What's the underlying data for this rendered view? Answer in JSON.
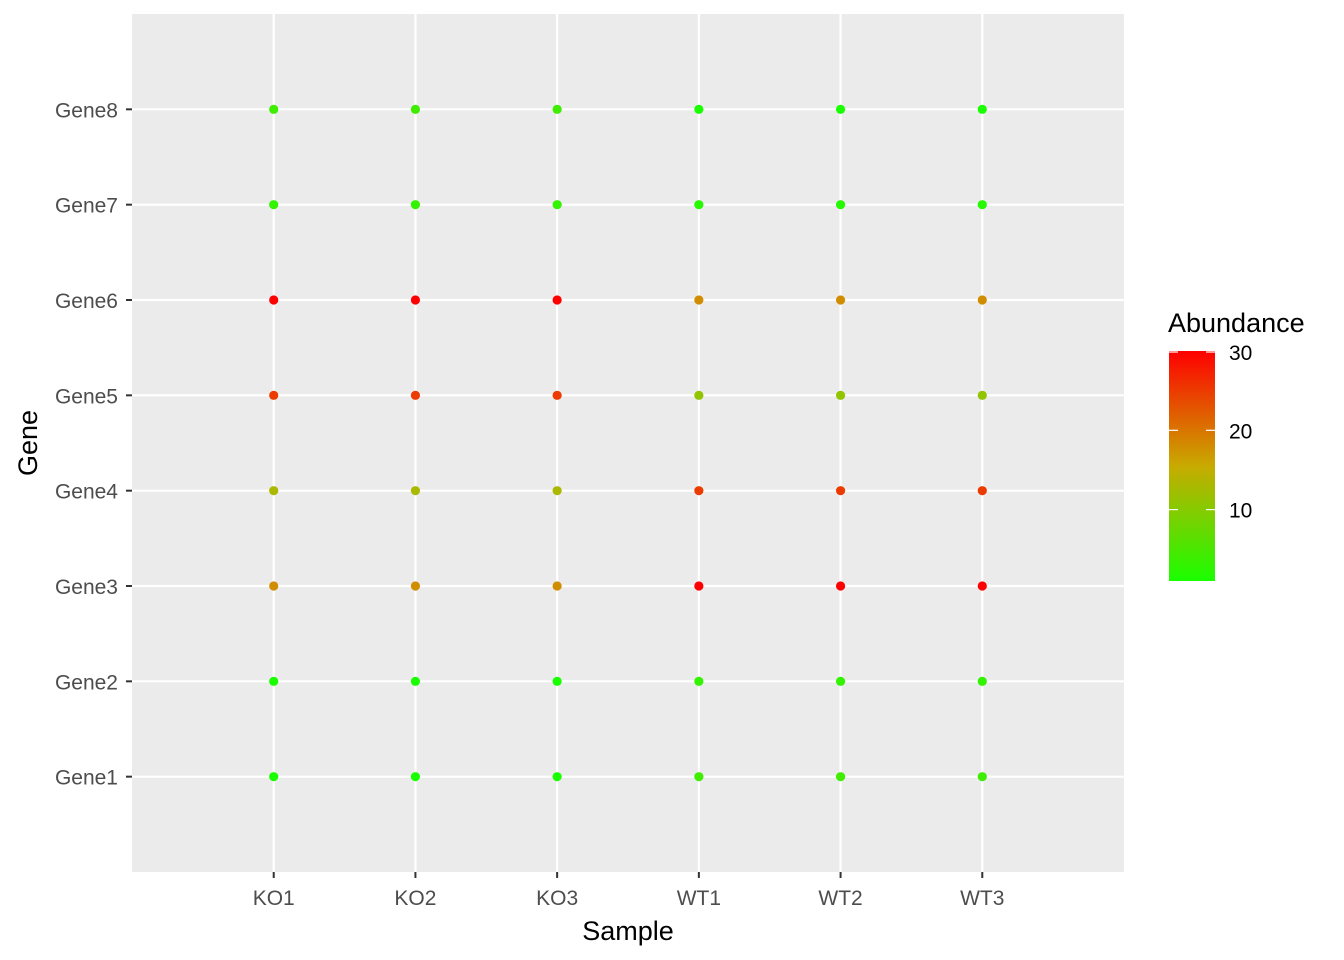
{
  "chart_data": {
    "type": "scatter",
    "xlabel": "Sample",
    "ylabel": "Gene",
    "x_categories": [
      "KO1",
      "KO2",
      "KO3",
      "WT1",
      "WT2",
      "WT3"
    ],
    "y_categories": [
      "Gene1",
      "Gene2",
      "Gene3",
      "Gene4",
      "Gene5",
      "Gene6",
      "Gene7",
      "Gene8"
    ],
    "color_variable": "Abundance",
    "color_scale": {
      "low_color": "#1aff00",
      "mid_color": "#c8aa00",
      "high_color": "#ff0000",
      "domain": [
        1,
        30
      ],
      "breaks": [
        10,
        20,
        30
      ]
    },
    "series": [
      {
        "x": "KO1",
        "values": [
          1,
          1,
          18,
          13,
          25,
          30,
          3,
          4
        ]
      },
      {
        "x": "KO2",
        "values": [
          1,
          1,
          18,
          13,
          25,
          30,
          3,
          4
        ]
      },
      {
        "x": "KO3",
        "values": [
          1,
          1,
          18,
          13,
          25,
          30,
          3,
          4
        ]
      },
      {
        "x": "WT1",
        "values": [
          4,
          3,
          30,
          25,
          11,
          18,
          2,
          1
        ]
      },
      {
        "x": "WT2",
        "values": [
          4,
          3,
          30,
          25,
          11,
          18,
          2,
          1
        ]
      },
      {
        "x": "WT3",
        "values": [
          4,
          3,
          30,
          25,
          11,
          18,
          2,
          1
        ]
      }
    ],
    "grid": true,
    "legend_position": "right"
  }
}
